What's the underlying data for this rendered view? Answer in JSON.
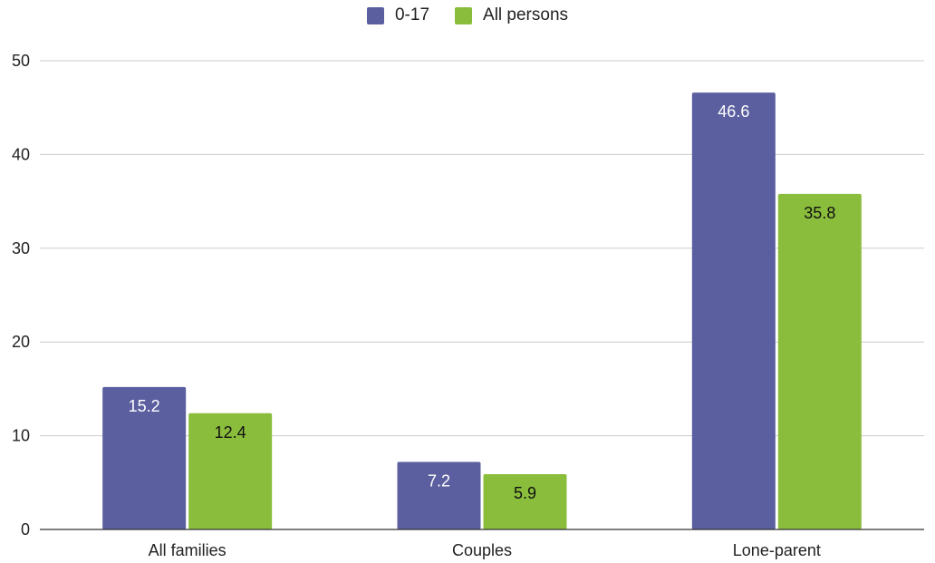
{
  "chart_data": {
    "type": "bar",
    "title": "",
    "xlabel": "",
    "ylabel": "",
    "categories": [
      "All families",
      "Couples",
      "Lone-parent"
    ],
    "series": [
      {
        "name": "0-17",
        "values": [
          15.2,
          7.2,
          46.6
        ],
        "color": "#5b5f9f",
        "label_color": "#ffffff"
      },
      {
        "name": "All persons",
        "values": [
          12.4,
          5.9,
          35.8
        ],
        "color": "#8bbd3d",
        "label_color": "#111111"
      }
    ],
    "data_labels": [
      [
        "15.2",
        "7.2",
        "46.6"
      ],
      [
        "12.4",
        "5.9",
        "35.8"
      ]
    ],
    "y_ticks": [
      "0",
      "10",
      "20",
      "30",
      "40",
      "50"
    ],
    "ylim": [
      0,
      50
    ],
    "grid": true,
    "legend_position": "top-center"
  }
}
